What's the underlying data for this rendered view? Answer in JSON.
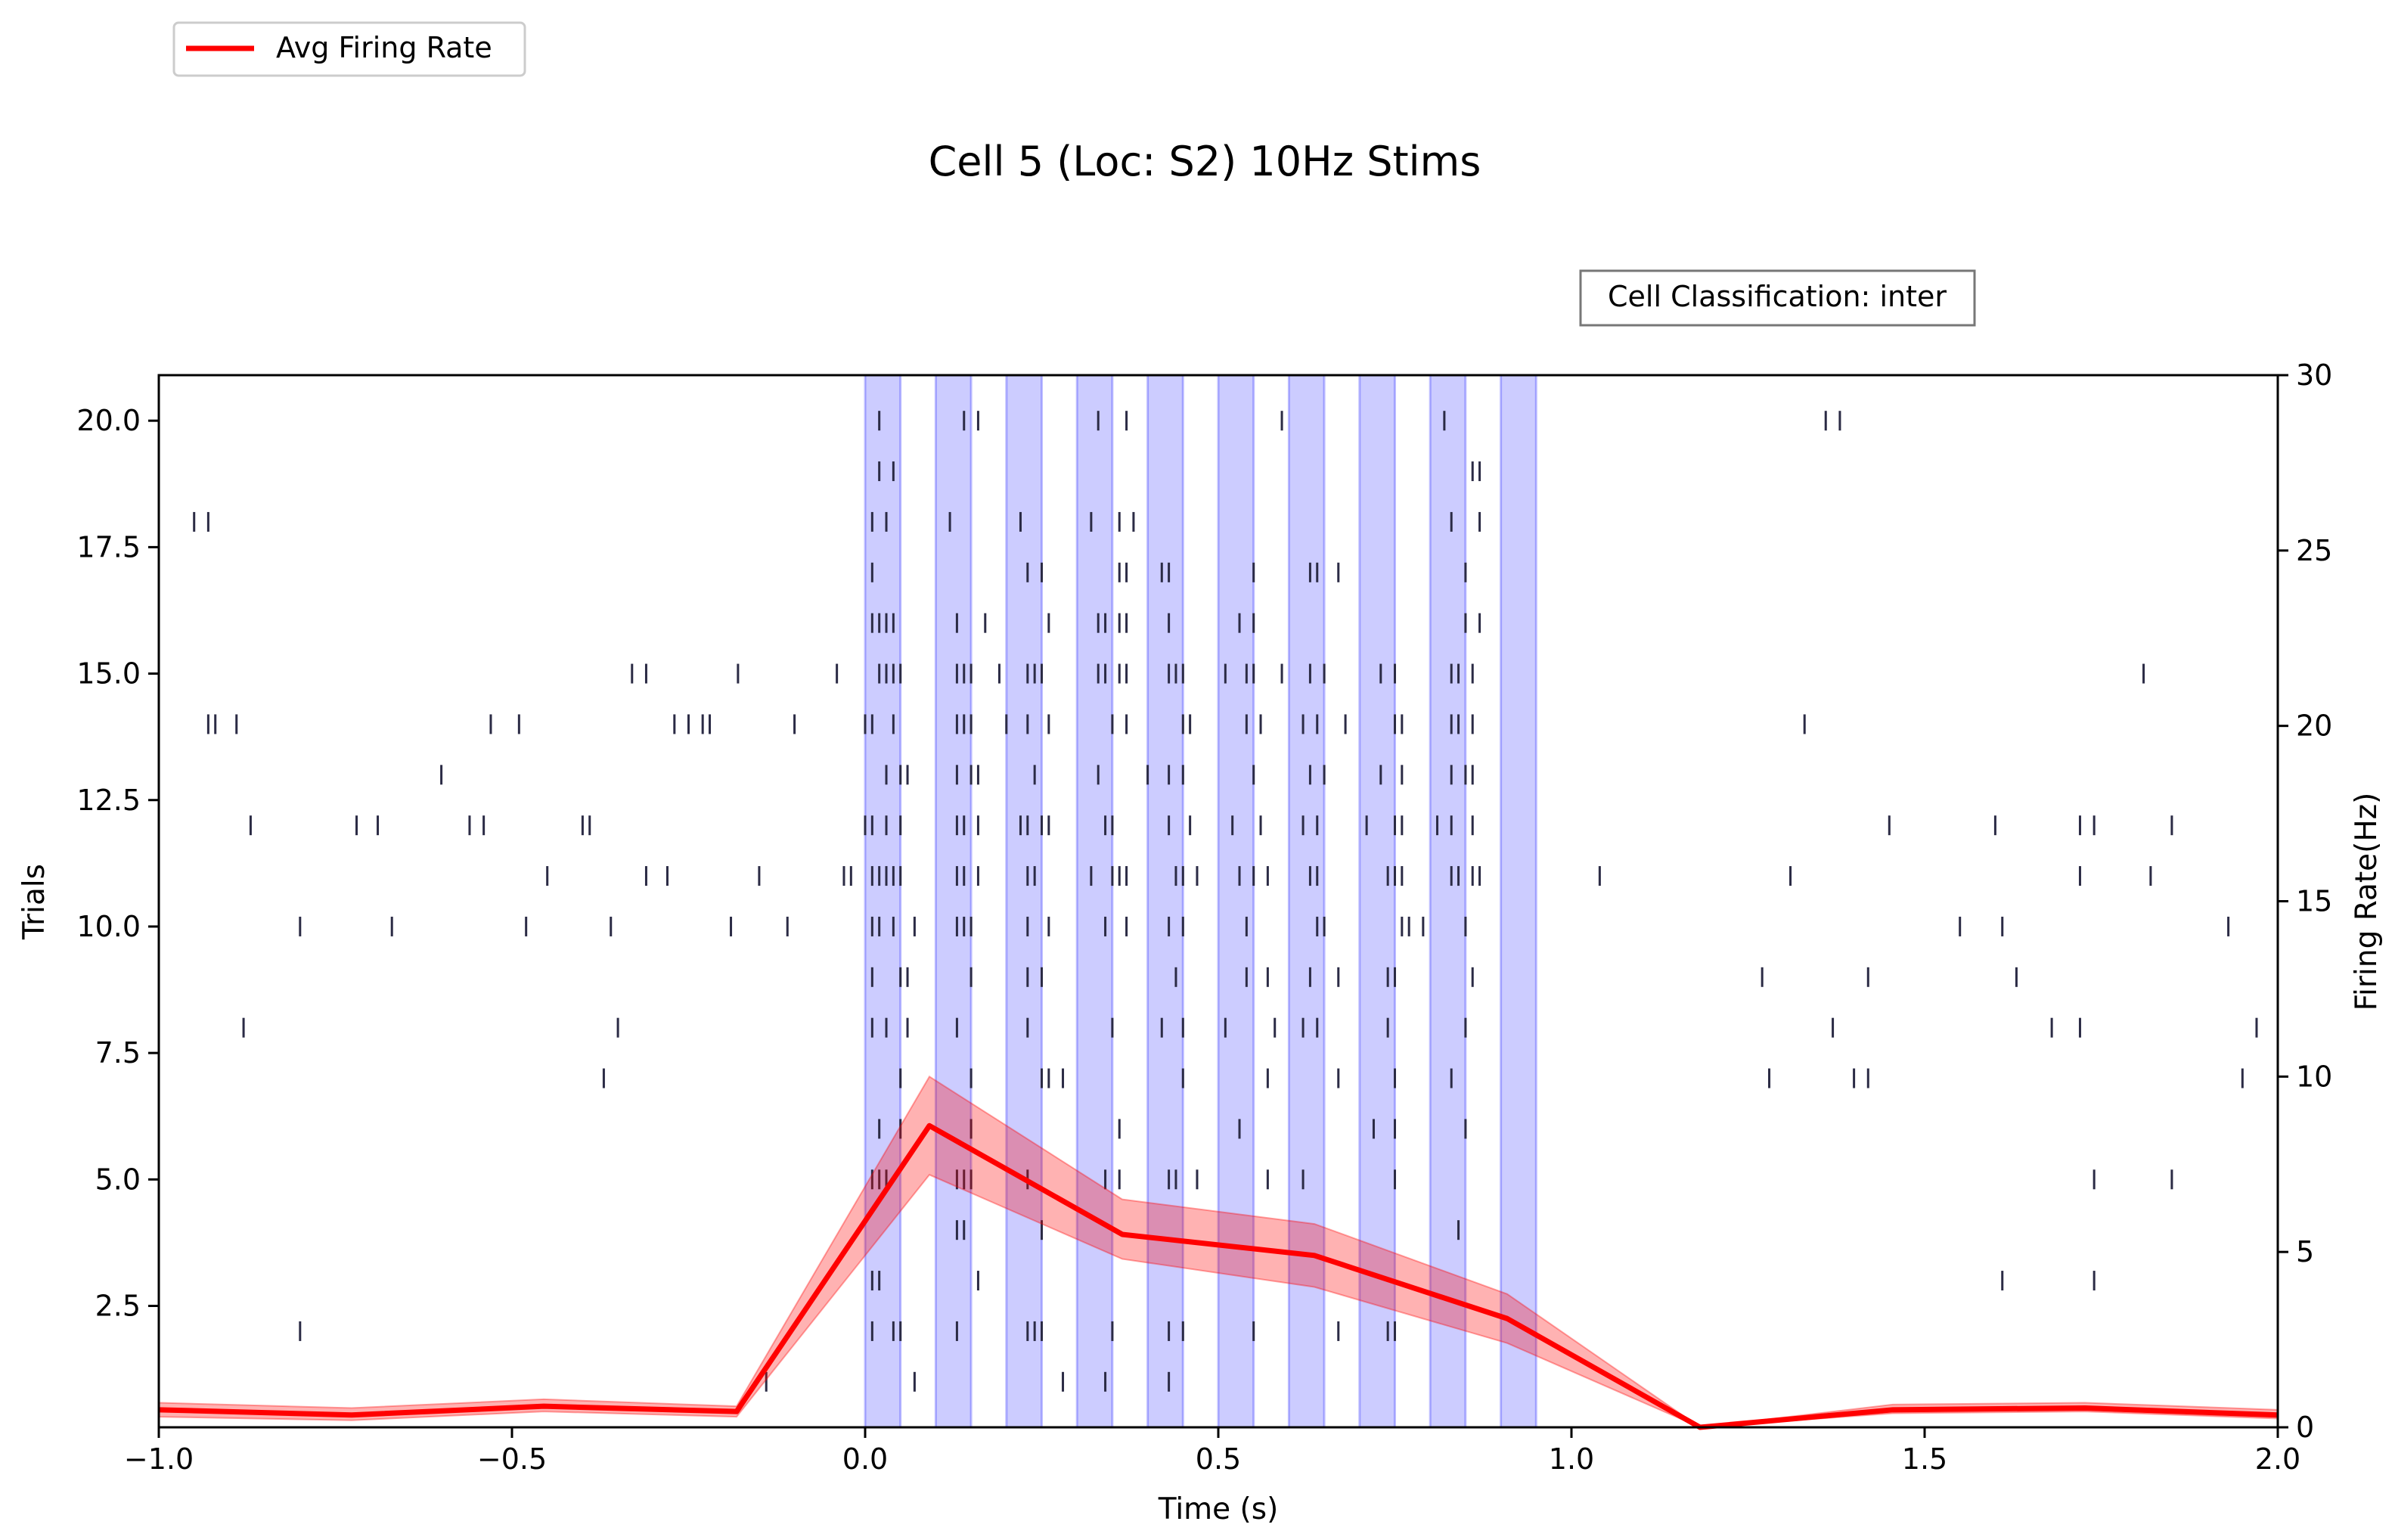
{
  "chart_data": {
    "type": "raster_with_line",
    "title": "Cell 5 (Loc: S2) 10Hz Stims",
    "annotation": "Cell Classification: inter",
    "xlabel": "Time (s)",
    "ylabel_left": "Trials",
    "ylabel_right": "Firing Rate(Hz)",
    "xlim": [
      -1.0,
      2.0
    ],
    "ylim_left": [
      0.1,
      20.9
    ],
    "ylim_right": [
      0,
      30
    ],
    "xticks": [
      -1.0,
      -0.5,
      0.0,
      0.5,
      1.0,
      1.5,
      2.0
    ],
    "xtick_labels": [
      "−1.0",
      "−0.5",
      "0.0",
      "0.5",
      "1.0",
      "1.5",
      "2.0"
    ],
    "yticks_left": [
      2.5,
      5.0,
      7.5,
      10.0,
      12.5,
      15.0,
      17.5,
      20.0
    ],
    "ytick_labels_left": [
      "2.5",
      "5.0",
      "7.5",
      "10.0",
      "12.5",
      "15.0",
      "17.5",
      "20.0"
    ],
    "yticks_right": [
      0,
      5,
      10,
      15,
      20,
      25,
      30
    ],
    "ytick_labels_right": [
      "0",
      "5",
      "10",
      "15",
      "20",
      "25",
      "30"
    ],
    "legend": {
      "placement": "upper-left",
      "entries": [
        {
          "label": "Avg Firing Rate",
          "color": "#ff0000"
        }
      ]
    },
    "stim_windows": [
      [
        0.0,
        0.05
      ],
      [
        0.1,
        0.15
      ],
      [
        0.2,
        0.25
      ],
      [
        0.3,
        0.35
      ],
      [
        0.4,
        0.45
      ],
      [
        0.5,
        0.55
      ],
      [
        0.6,
        0.65
      ],
      [
        0.7,
        0.75
      ],
      [
        0.8,
        0.85
      ],
      [
        0.9,
        0.95
      ]
    ],
    "stim_color": "#0000ff",
    "spike_color": "#2b2b45",
    "firing_rate": {
      "name": "Avg Firing Rate",
      "color": "#ff0000",
      "x": [
        -1.0,
        -0.727,
        -0.455,
        -0.182,
        0.091,
        0.364,
        0.636,
        0.909,
        1.182,
        1.455,
        1.727,
        2.0
      ],
      "y": [
        0.5,
        0.35,
        0.6,
        0.45,
        8.6,
        5.5,
        4.9,
        3.1,
        0.0,
        0.5,
        0.55,
        0.35
      ],
      "lower": [
        0.3,
        0.2,
        0.45,
        0.3,
        7.2,
        4.8,
        4.0,
        2.4,
        0.0,
        0.4,
        0.45,
        0.25
      ],
      "upper": [
        0.7,
        0.55,
        0.8,
        0.6,
        10.0,
        6.5,
        5.8,
        3.8,
        0.0,
        0.65,
        0.7,
        0.5
      ]
    },
    "raster": [
      {
        "trial": 20,
        "spikes": [
          0.02,
          0.14,
          0.16,
          0.33,
          0.37,
          0.59,
          0.82,
          1.36,
          1.38
        ]
      },
      {
        "trial": 19,
        "spikes": [
          0.02,
          0.04,
          0.86,
          0.87
        ]
      },
      {
        "trial": 18,
        "spikes": [
          -0.95,
          -0.93,
          0.01,
          0.03,
          0.12,
          0.22,
          0.32,
          0.36,
          0.38,
          0.83,
          0.87
        ]
      },
      {
        "trial": 17,
        "spikes": [
          0.01,
          0.23,
          0.25,
          0.36,
          0.37,
          0.42,
          0.43,
          0.55,
          0.63,
          0.64,
          0.67,
          0.85
        ]
      },
      {
        "trial": 16,
        "spikes": [
          0.01,
          0.02,
          0.03,
          0.04,
          0.13,
          0.17,
          0.26,
          0.33,
          0.34,
          0.36,
          0.37,
          0.43,
          0.53,
          0.55,
          0.85,
          0.87
        ]
      },
      {
        "trial": 15,
        "spikes": [
          -0.33,
          -0.31,
          -0.18,
          -0.04,
          0.02,
          0.03,
          0.04,
          0.05,
          0.13,
          0.14,
          0.15,
          0.19,
          0.23,
          0.24,
          0.25,
          0.33,
          0.34,
          0.36,
          0.37,
          0.43,
          0.44,
          0.45,
          0.51,
          0.54,
          0.55,
          0.59,
          0.63,
          0.65,
          0.73,
          0.75,
          0.83,
          0.84,
          0.86,
          1.81
        ]
      },
      {
        "trial": 14,
        "spikes": [
          -0.93,
          -0.92,
          -0.89,
          -0.53,
          -0.49,
          -0.27,
          -0.25,
          -0.23,
          -0.22,
          -0.1,
          0.0,
          0.01,
          0.04,
          0.13,
          0.14,
          0.15,
          0.2,
          0.23,
          0.26,
          0.35,
          0.37,
          0.45,
          0.46,
          0.54,
          0.56,
          0.62,
          0.64,
          0.68,
          0.75,
          0.76,
          0.83,
          0.84,
          0.86,
          1.33
        ]
      },
      {
        "trial": 13,
        "spikes": [
          -0.6,
          0.03,
          0.05,
          0.06,
          0.13,
          0.15,
          0.16,
          0.24,
          0.33,
          0.4,
          0.43,
          0.45,
          0.55,
          0.63,
          0.65,
          0.73,
          0.76,
          0.83,
          0.85,
          0.86
        ]
      },
      {
        "trial": 12,
        "spikes": [
          -1.0,
          -0.87,
          -0.72,
          -0.69,
          -0.56,
          -0.54,
          -0.4,
          -0.39,
          0.0,
          0.01,
          0.03,
          0.05,
          0.13,
          0.14,
          0.16,
          0.22,
          0.23,
          0.25,
          0.26,
          0.34,
          0.35,
          0.43,
          0.46,
          0.52,
          0.56,
          0.62,
          0.64,
          0.71,
          0.75,
          0.76,
          0.81,
          0.83,
          0.86,
          1.45,
          1.6,
          1.72,
          1.74,
          1.85,
          2.0
        ]
      },
      {
        "trial": 11,
        "spikes": [
          -0.45,
          -0.31,
          -0.28,
          -0.15,
          -0.03,
          -0.02,
          0.01,
          0.02,
          0.03,
          0.04,
          0.05,
          0.13,
          0.14,
          0.16,
          0.23,
          0.24,
          0.32,
          0.35,
          0.36,
          0.37,
          0.44,
          0.45,
          0.47,
          0.53,
          0.55,
          0.57,
          0.63,
          0.64,
          0.74,
          0.75,
          0.76,
          0.83,
          0.84,
          0.86,
          0.87,
          1.04,
          1.31,
          1.72,
          1.82
        ]
      },
      {
        "trial": 10,
        "spikes": [
          -0.8,
          -0.67,
          -0.48,
          -0.36,
          -0.19,
          -0.11,
          0.01,
          0.02,
          0.04,
          0.07,
          0.13,
          0.14,
          0.15,
          0.23,
          0.26,
          0.34,
          0.37,
          0.43,
          0.45,
          0.54,
          0.64,
          0.65,
          0.76,
          0.77,
          0.79,
          0.85,
          1.55,
          1.61,
          1.93
        ]
      },
      {
        "trial": 9,
        "spikes": [
          0.01,
          0.05,
          0.06,
          0.15,
          0.23,
          0.25,
          0.44,
          0.54,
          0.57,
          0.63,
          0.67,
          0.74,
          0.75,
          0.86,
          1.27,
          1.42,
          1.63
        ]
      },
      {
        "trial": 8,
        "spikes": [
          -0.88,
          -0.35,
          0.01,
          0.03,
          0.06,
          0.13,
          0.23,
          0.35,
          0.42,
          0.45,
          0.51,
          0.58,
          0.62,
          0.64,
          0.74,
          0.85,
          1.37,
          1.68,
          1.72,
          1.97
        ]
      },
      {
        "trial": 7,
        "spikes": [
          -0.37,
          0.05,
          0.15,
          0.25,
          0.26,
          0.28,
          0.45,
          0.57,
          0.67,
          0.75,
          0.83,
          1.28,
          1.4,
          1.42,
          1.95
        ]
      },
      {
        "trial": 6,
        "spikes": [
          0.02,
          0.05,
          0.15,
          0.36,
          0.53,
          0.72,
          0.75,
          0.85
        ]
      },
      {
        "trial": 5,
        "spikes": [
          0.01,
          0.02,
          0.03,
          0.13,
          0.14,
          0.15,
          0.23,
          0.34,
          0.36,
          0.43,
          0.44,
          0.47,
          0.57,
          0.62,
          0.75,
          1.74,
          1.85
        ]
      },
      {
        "trial": 4,
        "spikes": [
          0.13,
          0.14,
          0.25,
          0.84
        ]
      },
      {
        "trial": 3,
        "spikes": [
          0.01,
          0.02,
          0.16,
          1.61,
          1.74
        ]
      },
      {
        "trial": 2,
        "spikes": [
          -0.8,
          0.01,
          0.04,
          0.05,
          0.13,
          0.23,
          0.24,
          0.25,
          0.35,
          0.43,
          0.45,
          0.55,
          0.67,
          0.74,
          0.75
        ]
      },
      {
        "trial": 1,
        "spikes": [
          -0.14,
          0.07,
          0.28,
          0.34,
          0.43
        ]
      }
    ]
  }
}
